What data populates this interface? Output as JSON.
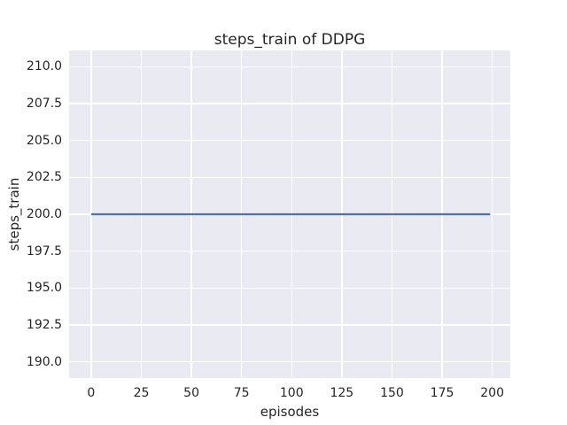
{
  "chart_data": {
    "type": "line",
    "title": "steps_train of DDPG",
    "xlabel": "episodes",
    "ylabel": "steps_train",
    "series": [
      {
        "name": "steps_train",
        "color": "#4c72b0",
        "line_width": 2.2,
        "points": [
          [
            0,
            200
          ],
          [
            199,
            200
          ]
        ],
        "note": "constant value 200 across all episodes 0-199"
      }
    ],
    "xlim": [
      -11,
      209
    ],
    "ylim": [
      188.9,
      211.1
    ],
    "xticks": [
      "0",
      "25",
      "50",
      "75",
      "100",
      "125",
      "150",
      "175",
      "200"
    ],
    "yticks": [
      "190.0",
      "192.5",
      "195.0",
      "197.5",
      "200.0",
      "202.5",
      "205.0",
      "207.5",
      "210.0"
    ],
    "grid": true,
    "legend": "none",
    "style": {
      "figure_bg": "#ffffff",
      "plot_bg": "#eaeaf2",
      "grid_color": "#ffffff",
      "text_color": "#262626"
    }
  }
}
